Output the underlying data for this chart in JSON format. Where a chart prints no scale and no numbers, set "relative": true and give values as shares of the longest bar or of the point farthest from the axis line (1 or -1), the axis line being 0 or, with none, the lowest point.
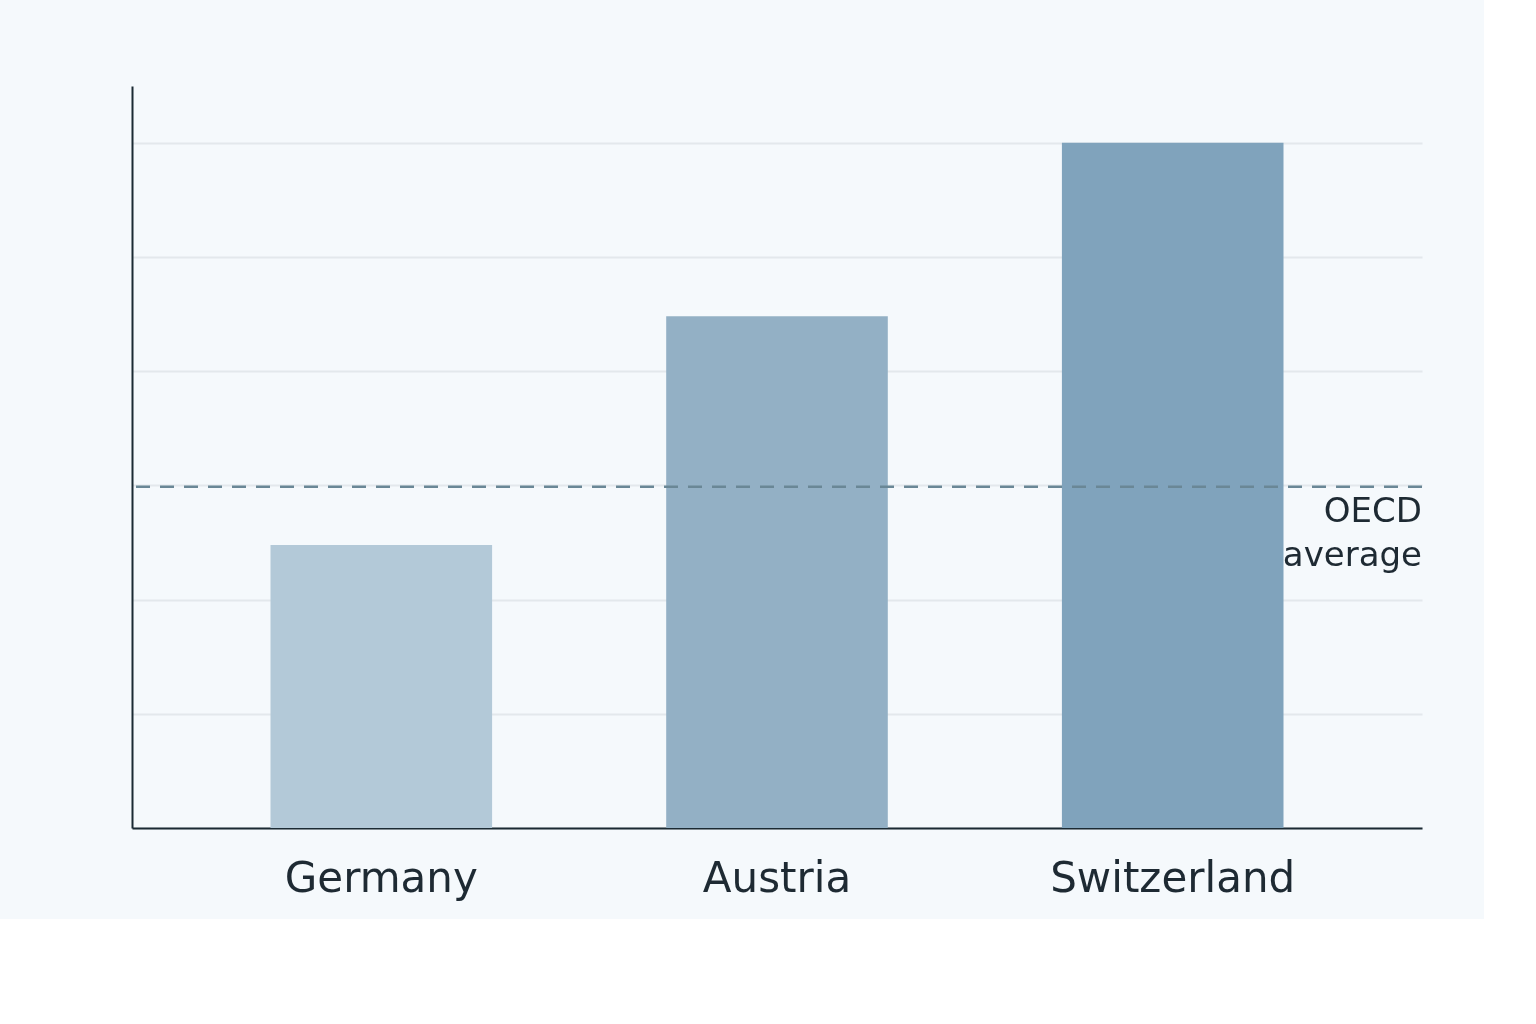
{
  "chart_data": {
    "type": "bar",
    "relative": true,
    "categories": [
      "Germany",
      "Austria",
      "Switzerland"
    ],
    "values": [
      0.413,
      0.747,
      1
    ],
    "colors": [
      "#b3c9d8",
      "#93b0c5",
      "#80a3bc"
    ],
    "grid": "y",
    "ref_lines": [
      {
        "axis": "y",
        "value": 0.498,
        "label": "OECD average",
        "color": "#6a8796",
        "line_style": "dashed"
      }
    ]
  }
}
